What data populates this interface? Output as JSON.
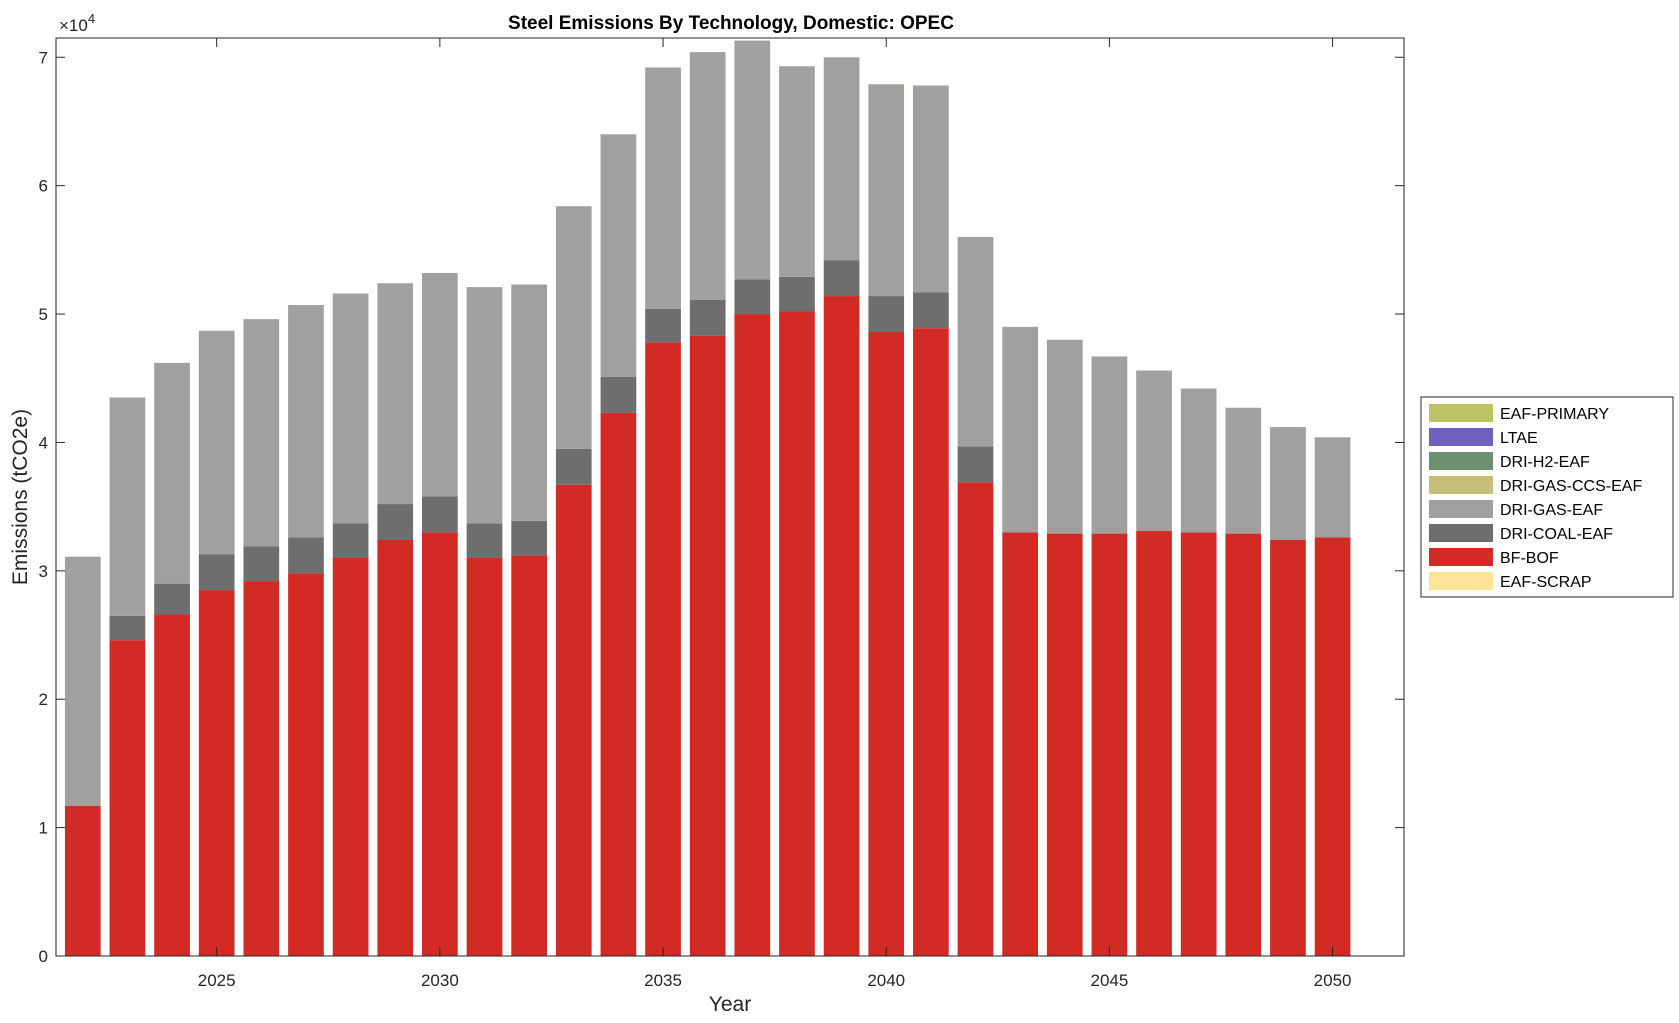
{
  "chart_data": {
    "type": "bar",
    "stacked": true,
    "title": "Steel Emissions By Technology, Domestic: OPEC",
    "xlabel": "Year",
    "ylabel": "Emissions (tCO2e)",
    "y_exponent_label": "×10",
    "y_exponent_power": "4",
    "ylim": [
      0,
      7.15
    ],
    "xlim": [
      2021.4,
      2051.6
    ],
    "x": [
      2022,
      2023,
      2024,
      2025,
      2026,
      2027,
      2028,
      2029,
      2030,
      2031,
      2032,
      2033,
      2034,
      2035,
      2036,
      2037,
      2038,
      2039,
      2040,
      2041,
      2042,
      2043,
      2044,
      2045,
      2046,
      2047,
      2048,
      2049,
      2050
    ],
    "x_ticks": [
      "2025",
      "2030",
      "2035",
      "2040",
      "2045",
      "2050"
    ],
    "x_tick_values": [
      2025,
      2030,
      2035,
      2040,
      2045,
      2050
    ],
    "y_ticks": [
      "0",
      "1",
      "2",
      "3",
      "4",
      "5",
      "6",
      "7"
    ],
    "y_tick_values": [
      0,
      1,
      2,
      3,
      4,
      5,
      6,
      7
    ],
    "legend_position": "outside-right",
    "series": [
      {
        "name": "BF-BOF",
        "color": "#d22b26",
        "values": [
          1.17,
          2.46,
          2.66,
          2.85,
          2.92,
          2.98,
          3.1,
          3.24,
          3.3,
          3.1,
          3.12,
          3.67,
          4.23,
          4.78,
          4.83,
          5.0,
          5.02,
          5.14,
          4.86,
          4.89,
          3.69,
          3.3,
          3.29,
          3.29,
          3.31,
          3.3,
          3.29,
          3.24,
          3.26
        ]
      },
      {
        "name": "DRI-COAL-EAF",
        "color": "#6e6e6e",
        "values": [
          0,
          0.19,
          0.24,
          0.28,
          0.27,
          0.28,
          0.27,
          0.28,
          0.28,
          0.27,
          0.27,
          0.28,
          0.28,
          0.26,
          0.28,
          0.27,
          0.27,
          0.28,
          0.28,
          0.28,
          0.28,
          0,
          0,
          0,
          0,
          0,
          0,
          0,
          0
        ]
      },
      {
        "name": "DRI-GAS-EAF",
        "color": "#a0a09e",
        "values": [
          1.94,
          1.7,
          1.72,
          1.74,
          1.77,
          1.81,
          1.79,
          1.72,
          1.74,
          1.84,
          1.84,
          1.89,
          1.89,
          1.88,
          1.93,
          1.86,
          1.64,
          1.58,
          1.65,
          1.61,
          1.63,
          1.6,
          1.51,
          1.38,
          1.25,
          1.12,
          0.98,
          0.88,
          0.78
        ]
      },
      {
        "name": "DRI-GAS-CCS-EAF",
        "color": "#c9bd7a",
        "values": [
          0,
          0,
          0,
          0,
          0,
          0,
          0,
          0,
          0,
          0,
          0,
          0,
          0,
          0,
          0,
          0,
          0,
          0,
          0,
          0,
          0,
          0,
          0,
          0,
          0,
          0,
          0,
          0,
          0
        ]
      },
      {
        "name": "DRI-H2-EAF",
        "color": "#6e9070",
        "values": [
          0,
          0,
          0,
          0,
          0,
          0,
          0,
          0,
          0,
          0,
          0,
          0,
          0,
          0,
          0,
          0,
          0,
          0,
          0,
          0,
          0,
          0,
          0,
          0,
          0,
          0,
          0,
          0,
          0
        ]
      },
      {
        "name": "LTAE",
        "color": "#7060c0",
        "values": [
          0,
          0,
          0,
          0,
          0,
          0,
          0,
          0,
          0,
          0,
          0,
          0,
          0,
          0,
          0,
          0,
          0,
          0,
          0,
          0,
          0,
          0,
          0,
          0,
          0,
          0,
          0,
          0,
          0
        ]
      },
      {
        "name": "EAF-PRIMARY",
        "color": "#bcc266",
        "values": [
          0,
          0,
          0,
          0,
          0,
          0,
          0,
          0,
          0,
          0,
          0,
          0,
          0,
          0,
          0,
          0,
          0,
          0,
          0,
          0,
          0,
          0,
          0,
          0,
          0,
          0,
          0,
          0,
          0
        ]
      },
      {
        "name": "EAF-SCRAP",
        "color": "#fde496",
        "values": [
          0,
          0,
          0,
          0,
          0,
          0,
          0,
          0,
          0,
          0,
          0,
          0,
          0,
          0,
          0,
          0,
          0,
          0,
          0,
          0,
          0,
          0,
          0,
          0,
          0,
          0,
          0,
          0,
          0
        ]
      }
    ],
    "legend": [
      {
        "name": "EAF-PRIMARY",
        "color": "#bcc266"
      },
      {
        "name": "LTAE",
        "color": "#7060c0"
      },
      {
        "name": "DRI-H2-EAF",
        "color": "#6e9070"
      },
      {
        "name": "DRI-GAS-CCS-EAF",
        "color": "#c9bd7a"
      },
      {
        "name": "DRI-GAS-EAF",
        "color": "#a0a09e"
      },
      {
        "name": "DRI-COAL-EAF",
        "color": "#6e6e6e"
      },
      {
        "name": "BF-BOF",
        "color": "#d22b26"
      },
      {
        "name": "EAF-SCRAP",
        "color": "#fde496"
      }
    ]
  }
}
